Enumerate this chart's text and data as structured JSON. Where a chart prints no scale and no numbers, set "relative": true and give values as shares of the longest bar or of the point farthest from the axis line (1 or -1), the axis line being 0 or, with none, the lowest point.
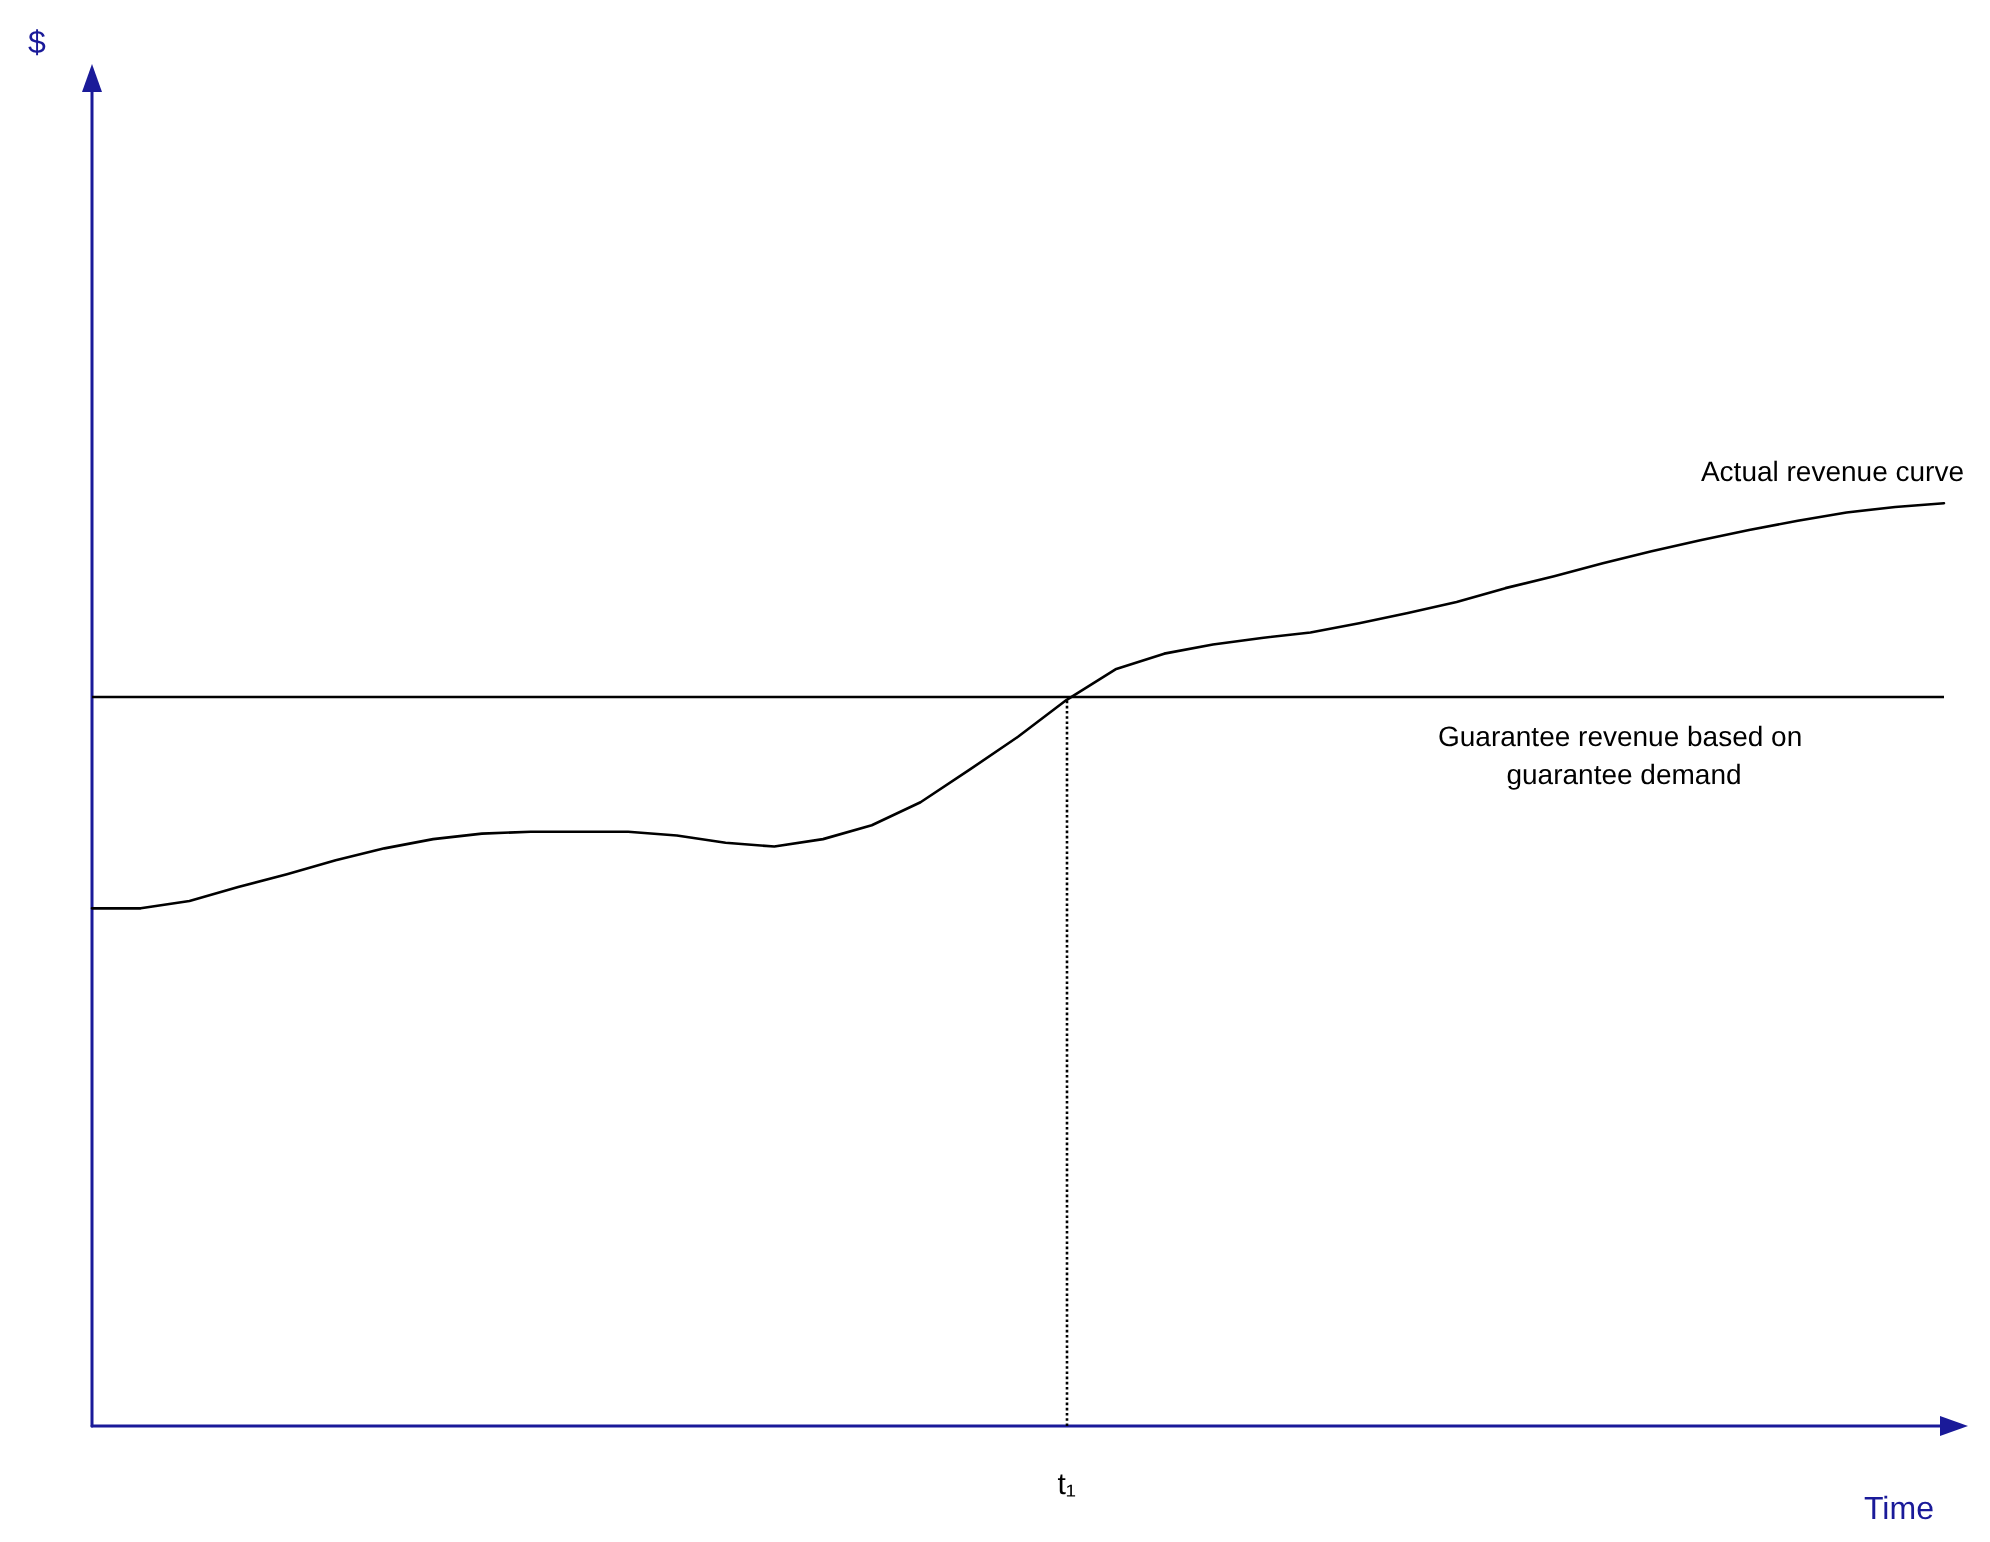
{
  "chart_data": {
    "type": "line",
    "relative": true,
    "xlabel": "Time",
    "marker": "none",
    "grid": false,
    "annotations": [
      "$",
      "t₁"
    ],
    "categories": [
      null,
      null,
      null,
      null,
      null,
      null,
      null,
      null,
      null,
      null,
      null,
      null,
      null,
      null,
      null,
      null,
      null,
      null,
      null,
      null,
      null,
      null,
      null,
      null,
      null,
      null,
      null,
      null,
      null,
      null,
      null,
      null,
      null,
      null,
      null,
      null,
      null,
      null,
      null
    ],
    "series": [
      {
        "name": "Actual revenue curve",
        "color": "#000000",
        "values": [
          0.561,
          0.561,
          0.569,
          0.584,
          0.598,
          0.613,
          0.626,
          0.636,
          0.642,
          0.644,
          0.644,
          0.644,
          0.64,
          0.632,
          0.628,
          0.636,
          0.651,
          0.676,
          0.711,
          0.747,
          0.787,
          0.82,
          0.837,
          0.847,
          0.854,
          0.86,
          0.87,
          0.881,
          0.893,
          0.908,
          0.921,
          0.935,
          0.948,
          0.96,
          0.971,
          0.981,
          0.99,
          0.996,
          1.0
        ]
      }
    ],
    "ref_lines": [
      {
        "axis": "y",
        "value": 0.787,
        "label": "Guarantee revenue based on guarantee demand",
        "color": "#000000",
        "line_style": "solid"
      }
    ]
  }
}
